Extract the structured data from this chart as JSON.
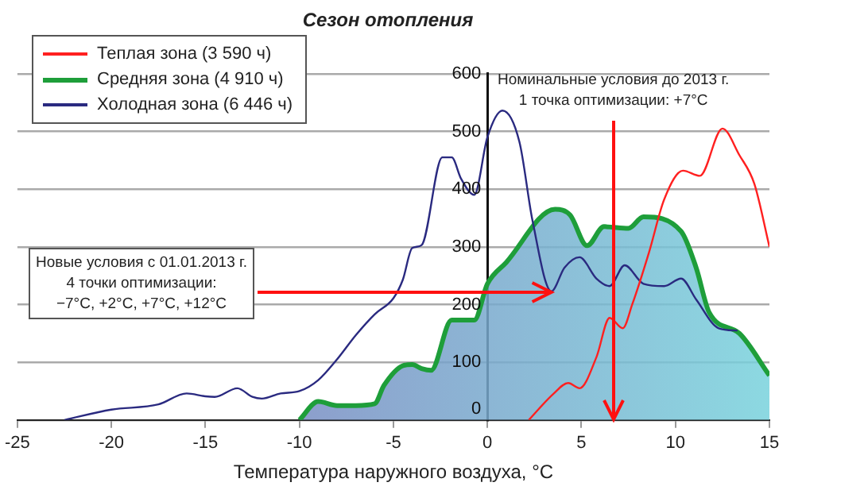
{
  "chart_data": {
    "type": "line",
    "title": "Сезон отопления",
    "xlabel": "Температура наружного воздуха, °C",
    "xlim": [
      -25,
      15
    ],
    "xticks": [
      -25,
      -20,
      -15,
      -10,
      -5,
      0,
      5,
      10,
      15
    ],
    "ylim": [
      0,
      600
    ],
    "yticks": [
      0,
      100,
      200,
      300,
      400,
      500,
      600
    ],
    "grid": "y",
    "legend": "top left",
    "series": [
      {
        "name": "Теплая зона (3 590 ч)",
        "color": "#ff2020",
        "x": [
          2.2,
          3.5,
          4.3,
          4.9,
          5.8,
          6.5,
          7.2,
          7.7,
          8.6,
          9.4,
          10.4,
          11.3,
          12.5,
          13.4,
          14.2,
          15
        ],
        "values": [
          0,
          45,
          64,
          55,
          109,
          177,
          159,
          200,
          291,
          382,
          432,
          423,
          505,
          459,
          409,
          300
        ]
      },
      {
        "name": "Средняя зона (4 910 ч)",
        "color": "#1e9e3a",
        "type": "area",
        "x": [
          -10,
          -9,
          -8,
          -7,
          -6,
          -5.5,
          -4.5,
          -4,
          -3.5,
          -3,
          -1.9,
          -0.7,
          0,
          1,
          3.6,
          4.4,
          5.3,
          6.2,
          7.5,
          8.3,
          10.3,
          11.1,
          11.8,
          13.4,
          15
        ],
        "values": [
          0,
          32,
          25,
          25,
          28,
          60,
          94,
          96,
          89,
          86,
          173,
          173,
          236,
          273,
          365,
          355,
          302,
          335,
          332,
          352,
          327,
          264,
          186,
          150,
          77
        ]
      },
      {
        "name": "Холодная зона (6 446 ч)",
        "color": "#2a2a80",
        "x": [
          -22.5,
          -20,
          -17.5,
          -16,
          -15,
          -14.5,
          -13.3,
          -12.5,
          -12,
          -11,
          -10,
          -9,
          -8,
          -7,
          -6,
          -5,
          -4.5,
          -4,
          -3.5,
          -2.4,
          -1.9,
          -1.4,
          -0.7,
          0,
          0.8,
          1.7,
          2.4,
          3.4,
          4.1,
          4.9,
          5.8,
          6.5,
          7.3,
          8.3,
          9.4,
          10.3,
          11.1,
          12.3,
          13.3
        ],
        "values": [
          0,
          18,
          27,
          46,
          41,
          40,
          55,
          40,
          37,
          46,
          50,
          69,
          105,
          147,
          183,
          211,
          243,
          298,
          303,
          455,
          455,
          418,
          390,
          490,
          536,
          482,
          345,
          223,
          264,
          282,
          245,
          232,
          268,
          236,
          232,
          245,
          209,
          159,
          155
        ]
      }
    ],
    "annotations": [
      {
        "text": "Новые условия с 01.01.2013 г.\n4 точки оптимизации:\n−7°C, +2°C, +7°C, +12°C",
        "x": 3.4,
        "y": 220
      },
      {
        "text": "Номинальные условия до 2013 г.\n1 точка оптимизации: +7°C",
        "x": 6.7,
        "y": 0
      }
    ]
  }
}
